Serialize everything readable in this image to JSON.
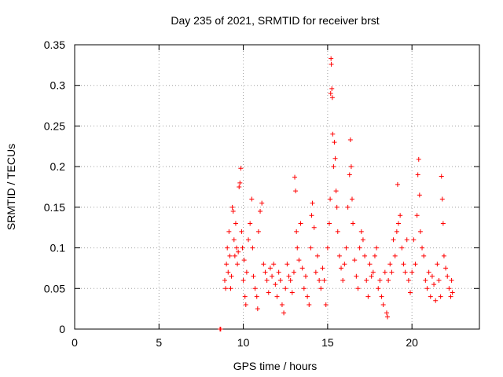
{
  "chart_data": {
    "type": "scatter",
    "title": "Day 235 of 2021, SRMTID for receiver brst",
    "xlabel": "GPS time / hours",
    "ylabel": "SRMTID / TECUs",
    "xlim": [
      0,
      24
    ],
    "ylim": [
      0,
      0.35
    ],
    "xticks": [
      0,
      5,
      10,
      15,
      20
    ],
    "xtick_labels": [
      "0",
      "5",
      "10",
      "15",
      "20"
    ],
    "yticks": [
      0,
      0.05,
      0.1,
      0.15,
      0.2,
      0.25,
      0.3,
      0.35
    ],
    "ytick_labels": [
      "0",
      "0.05",
      "0.1",
      "0.15",
      "0.2",
      "0.25",
      "0.3",
      "0.35"
    ],
    "grid": true,
    "marker": "+",
    "series": [
      {
        "name": "SRMTID",
        "color": "#ff0000",
        "points": [
          [
            8.62,
            0.0
          ],
          [
            8.64,
            0.0
          ],
          [
            8.66,
            0.0
          ],
          [
            8.9,
            0.06
          ],
          [
            8.95,
            0.05
          ],
          [
            9.0,
            0.08
          ],
          [
            9.05,
            0.1
          ],
          [
            9.1,
            0.07
          ],
          [
            9.15,
            0.12
          ],
          [
            9.2,
            0.09
          ],
          [
            9.25,
            0.05
          ],
          [
            9.3,
            0.065
          ],
          [
            9.35,
            0.15
          ],
          [
            9.4,
            0.145
          ],
          [
            9.45,
            0.11
          ],
          [
            9.5,
            0.09
          ],
          [
            9.55,
            0.13
          ],
          [
            9.6,
            0.1
          ],
          [
            9.65,
            0.08
          ],
          [
            9.7,
            0.095
          ],
          [
            9.75,
            0.175
          ],
          [
            9.8,
            0.18
          ],
          [
            9.85,
            0.198
          ],
          [
            9.9,
            0.12
          ],
          [
            9.95,
            0.1
          ],
          [
            10.0,
            0.06
          ],
          [
            10.05,
            0.085
          ],
          [
            10.1,
            0.04
          ],
          [
            10.15,
            0.03
          ],
          [
            10.2,
            0.07
          ],
          [
            10.3,
            0.11
          ],
          [
            10.4,
            0.13
          ],
          [
            10.5,
            0.16
          ],
          [
            10.55,
            0.1
          ],
          [
            10.6,
            0.065
          ],
          [
            10.7,
            0.05
          ],
          [
            10.8,
            0.04
          ],
          [
            10.85,
            0.025
          ],
          [
            10.9,
            0.12
          ],
          [
            11.0,
            0.145
          ],
          [
            11.1,
            0.155
          ],
          [
            11.2,
            0.08
          ],
          [
            11.3,
            0.07
          ],
          [
            11.4,
            0.06
          ],
          [
            11.5,
            0.045
          ],
          [
            11.6,
            0.075
          ],
          [
            11.7,
            0.065
          ],
          [
            11.8,
            0.08
          ],
          [
            11.9,
            0.055
          ],
          [
            12.0,
            0.04
          ],
          [
            12.1,
            0.07
          ],
          [
            12.2,
            0.06
          ],
          [
            12.3,
            0.03
          ],
          [
            12.4,
            0.02
          ],
          [
            12.5,
            0.05
          ],
          [
            12.6,
            0.08
          ],
          [
            12.7,
            0.065
          ],
          [
            12.8,
            0.06
          ],
          [
            12.9,
            0.045
          ],
          [
            13.0,
            0.07
          ],
          [
            13.05,
            0.187
          ],
          [
            13.1,
            0.17
          ],
          [
            13.15,
            0.12
          ],
          [
            13.2,
            0.1
          ],
          [
            13.3,
            0.085
          ],
          [
            13.4,
            0.13
          ],
          [
            13.5,
            0.075
          ],
          [
            13.6,
            0.05
          ],
          [
            13.7,
            0.065
          ],
          [
            13.8,
            0.04
          ],
          [
            13.9,
            0.03
          ],
          [
            14.0,
            0.1
          ],
          [
            14.05,
            0.14
          ],
          [
            14.1,
            0.155
          ],
          [
            14.2,
            0.125
          ],
          [
            14.3,
            0.07
          ],
          [
            14.4,
            0.09
          ],
          [
            14.5,
            0.06
          ],
          [
            14.6,
            0.05
          ],
          [
            14.7,
            0.075
          ],
          [
            14.8,
            0.06
          ],
          [
            14.9,
            0.03
          ],
          [
            15.0,
            0.1
          ],
          [
            15.1,
            0.13
          ],
          [
            15.15,
            0.16
          ],
          [
            15.18,
            0.29
          ],
          [
            15.2,
            0.333
          ],
          [
            15.22,
            0.326
          ],
          [
            15.25,
            0.296
          ],
          [
            15.28,
            0.285
          ],
          [
            15.3,
            0.24
          ],
          [
            15.35,
            0.2
          ],
          [
            15.4,
            0.23
          ],
          [
            15.45,
            0.21
          ],
          [
            15.5,
            0.17
          ],
          [
            15.55,
            0.15
          ],
          [
            15.6,
            0.12
          ],
          [
            15.7,
            0.09
          ],
          [
            15.8,
            0.075
          ],
          [
            15.9,
            0.06
          ],
          [
            16.0,
            0.08
          ],
          [
            16.1,
            0.1
          ],
          [
            16.2,
            0.15
          ],
          [
            16.3,
            0.19
          ],
          [
            16.35,
            0.233
          ],
          [
            16.4,
            0.2
          ],
          [
            16.45,
            0.16
          ],
          [
            16.5,
            0.13
          ],
          [
            16.6,
            0.085
          ],
          [
            16.7,
            0.065
          ],
          [
            16.8,
            0.05
          ],
          [
            16.9,
            0.1
          ],
          [
            17.0,
            0.12
          ],
          [
            17.1,
            0.11
          ],
          [
            17.2,
            0.09
          ],
          [
            17.3,
            0.06
          ],
          [
            17.4,
            0.04
          ],
          [
            17.5,
            0.08
          ],
          [
            17.6,
            0.065
          ],
          [
            17.7,
            0.07
          ],
          [
            17.8,
            0.09
          ],
          [
            17.9,
            0.1
          ],
          [
            18.0,
            0.05
          ],
          [
            18.1,
            0.06
          ],
          [
            18.2,
            0.04
          ],
          [
            18.3,
            0.03
          ],
          [
            18.4,
            0.07
          ],
          [
            18.5,
            0.02
          ],
          [
            18.55,
            0.015
          ],
          [
            18.6,
            0.06
          ],
          [
            18.7,
            0.08
          ],
          [
            18.8,
            0.07
          ],
          [
            18.9,
            0.11
          ],
          [
            19.0,
            0.09
          ],
          [
            19.1,
            0.12
          ],
          [
            19.15,
            0.178
          ],
          [
            19.2,
            0.13
          ],
          [
            19.3,
            0.14
          ],
          [
            19.4,
            0.1
          ],
          [
            19.5,
            0.08
          ],
          [
            19.6,
            0.07
          ],
          [
            19.7,
            0.11
          ],
          [
            19.8,
            0.06
          ],
          [
            19.9,
            0.045
          ],
          [
            20.0,
            0.07
          ],
          [
            20.1,
            0.11
          ],
          [
            20.2,
            0.08
          ],
          [
            20.3,
            0.14
          ],
          [
            20.35,
            0.19
          ],
          [
            20.4,
            0.209
          ],
          [
            20.45,
            0.165
          ],
          [
            20.5,
            0.12
          ],
          [
            20.6,
            0.1
          ],
          [
            20.7,
            0.09
          ],
          [
            20.8,
            0.06
          ],
          [
            20.9,
            0.05
          ],
          [
            21.0,
            0.07
          ],
          [
            21.1,
            0.04
          ],
          [
            21.2,
            0.065
          ],
          [
            21.3,
            0.055
          ],
          [
            21.4,
            0.035
          ],
          [
            21.5,
            0.08
          ],
          [
            21.6,
            0.06
          ],
          [
            21.7,
            0.04
          ],
          [
            21.75,
            0.188
          ],
          [
            21.8,
            0.16
          ],
          [
            21.85,
            0.13
          ],
          [
            21.9,
            0.09
          ],
          [
            22.0,
            0.075
          ],
          [
            22.1,
            0.065
          ],
          [
            22.2,
            0.05
          ],
          [
            22.3,
            0.04
          ],
          [
            22.35,
            0.06
          ],
          [
            22.4,
            0.045
          ]
        ]
      }
    ]
  }
}
